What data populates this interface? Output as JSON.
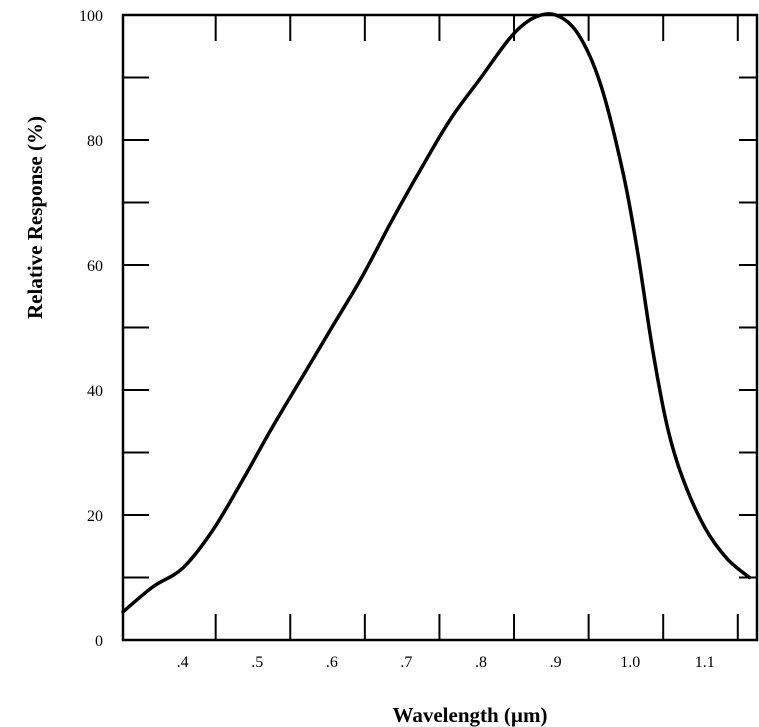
{
  "chart_data": {
    "type": "line",
    "title": "",
    "xlabel": "Wavelength (µm)",
    "ylabel": "Relative Response (%)",
    "xlim": [
      0.32,
      1.17
    ],
    "ylim": [
      0,
      100
    ],
    "x_tick_labels": [
      ".4",
      ".5",
      ".6",
      ".7",
      ".8",
      ".9",
      "1.0",
      "1.1"
    ],
    "x_tick_values": [
      0.4,
      0.5,
      0.6,
      0.7,
      0.8,
      0.9,
      1.0,
      1.1
    ],
    "y_tick_labels": [
      "0",
      "20",
      "40",
      "60",
      "80",
      "100"
    ],
    "y_tick_values": [
      0,
      20,
      40,
      60,
      80,
      100
    ],
    "y_minor_ticks": [
      10,
      30,
      50,
      70,
      90
    ],
    "grid": false,
    "line_color": "#000000",
    "series": [
      {
        "x": [
          0.32,
          0.36,
          0.4,
          0.44,
          0.48,
          0.52,
          0.56,
          0.6,
          0.64,
          0.68,
          0.72,
          0.76,
          0.8,
          0.84,
          0.87,
          0.9,
          0.93,
          0.96,
          0.99,
          1.01,
          1.03,
          1.05,
          1.07,
          1.1,
          1.13,
          1.16
        ],
        "y": [
          4.5,
          8.5,
          11.5,
          17.5,
          25.5,
          34,
          42,
          50,
          58,
          67,
          75.5,
          83.5,
          90,
          96.5,
          99.5,
          100,
          97,
          89,
          75,
          62,
          46.5,
          34,
          26,
          18,
          13,
          10
        ]
      }
    ]
  }
}
